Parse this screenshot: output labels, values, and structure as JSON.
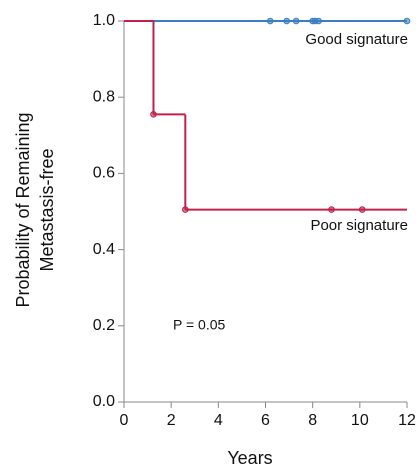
{
  "chart_data": {
    "type": "step",
    "y_label": [
      "Probability of Remaining",
      "Metastasis-free"
    ],
    "x_label": "Years",
    "annotations": [
      "Good signature",
      "Poor signature",
      "P = 0.05"
    ],
    "xlim": [
      0,
      12
    ],
    "xticks": [
      0,
      2,
      4,
      6,
      8,
      10,
      12
    ],
    "ylim": [
      0,
      1
    ],
    "yticks": [
      {
        "value": 0,
        "label": "0.0"
      },
      {
        "value": 0.2,
        "label": "0.2"
      },
      {
        "value": 0.4,
        "label": "0.4"
      },
      {
        "value": 0.6,
        "label": "0.6"
      },
      {
        "value": 0.8,
        "label": "0.8"
      },
      {
        "value": 1,
        "label": "1.0"
      }
    ],
    "series": [
      {
        "name": "Good signature",
        "color": "#3a7fc1",
        "x": [
          0,
          12
        ],
        "values": [
          1.0,
          1.0
        ],
        "marks_x": [
          6.2,
          6.9,
          7.3,
          8.0,
          8.1,
          8.25,
          12
        ],
        "marks_values": [
          1.0,
          1.0,
          1.0,
          1.0,
          1.0,
          1.0,
          1.0
        ]
      },
      {
        "name": "Poor signature",
        "color": "#c0204a",
        "x": [
          0,
          1.25,
          2.6,
          12
        ],
        "values": [
          1.0,
          0.755,
          0.505,
          0.505
        ],
        "marks_x": [
          1.25,
          2.6,
          8.8,
          10.1
        ],
        "marks_values": [
          0.755,
          0.505,
          0.505,
          0.505
        ]
      }
    ]
  }
}
